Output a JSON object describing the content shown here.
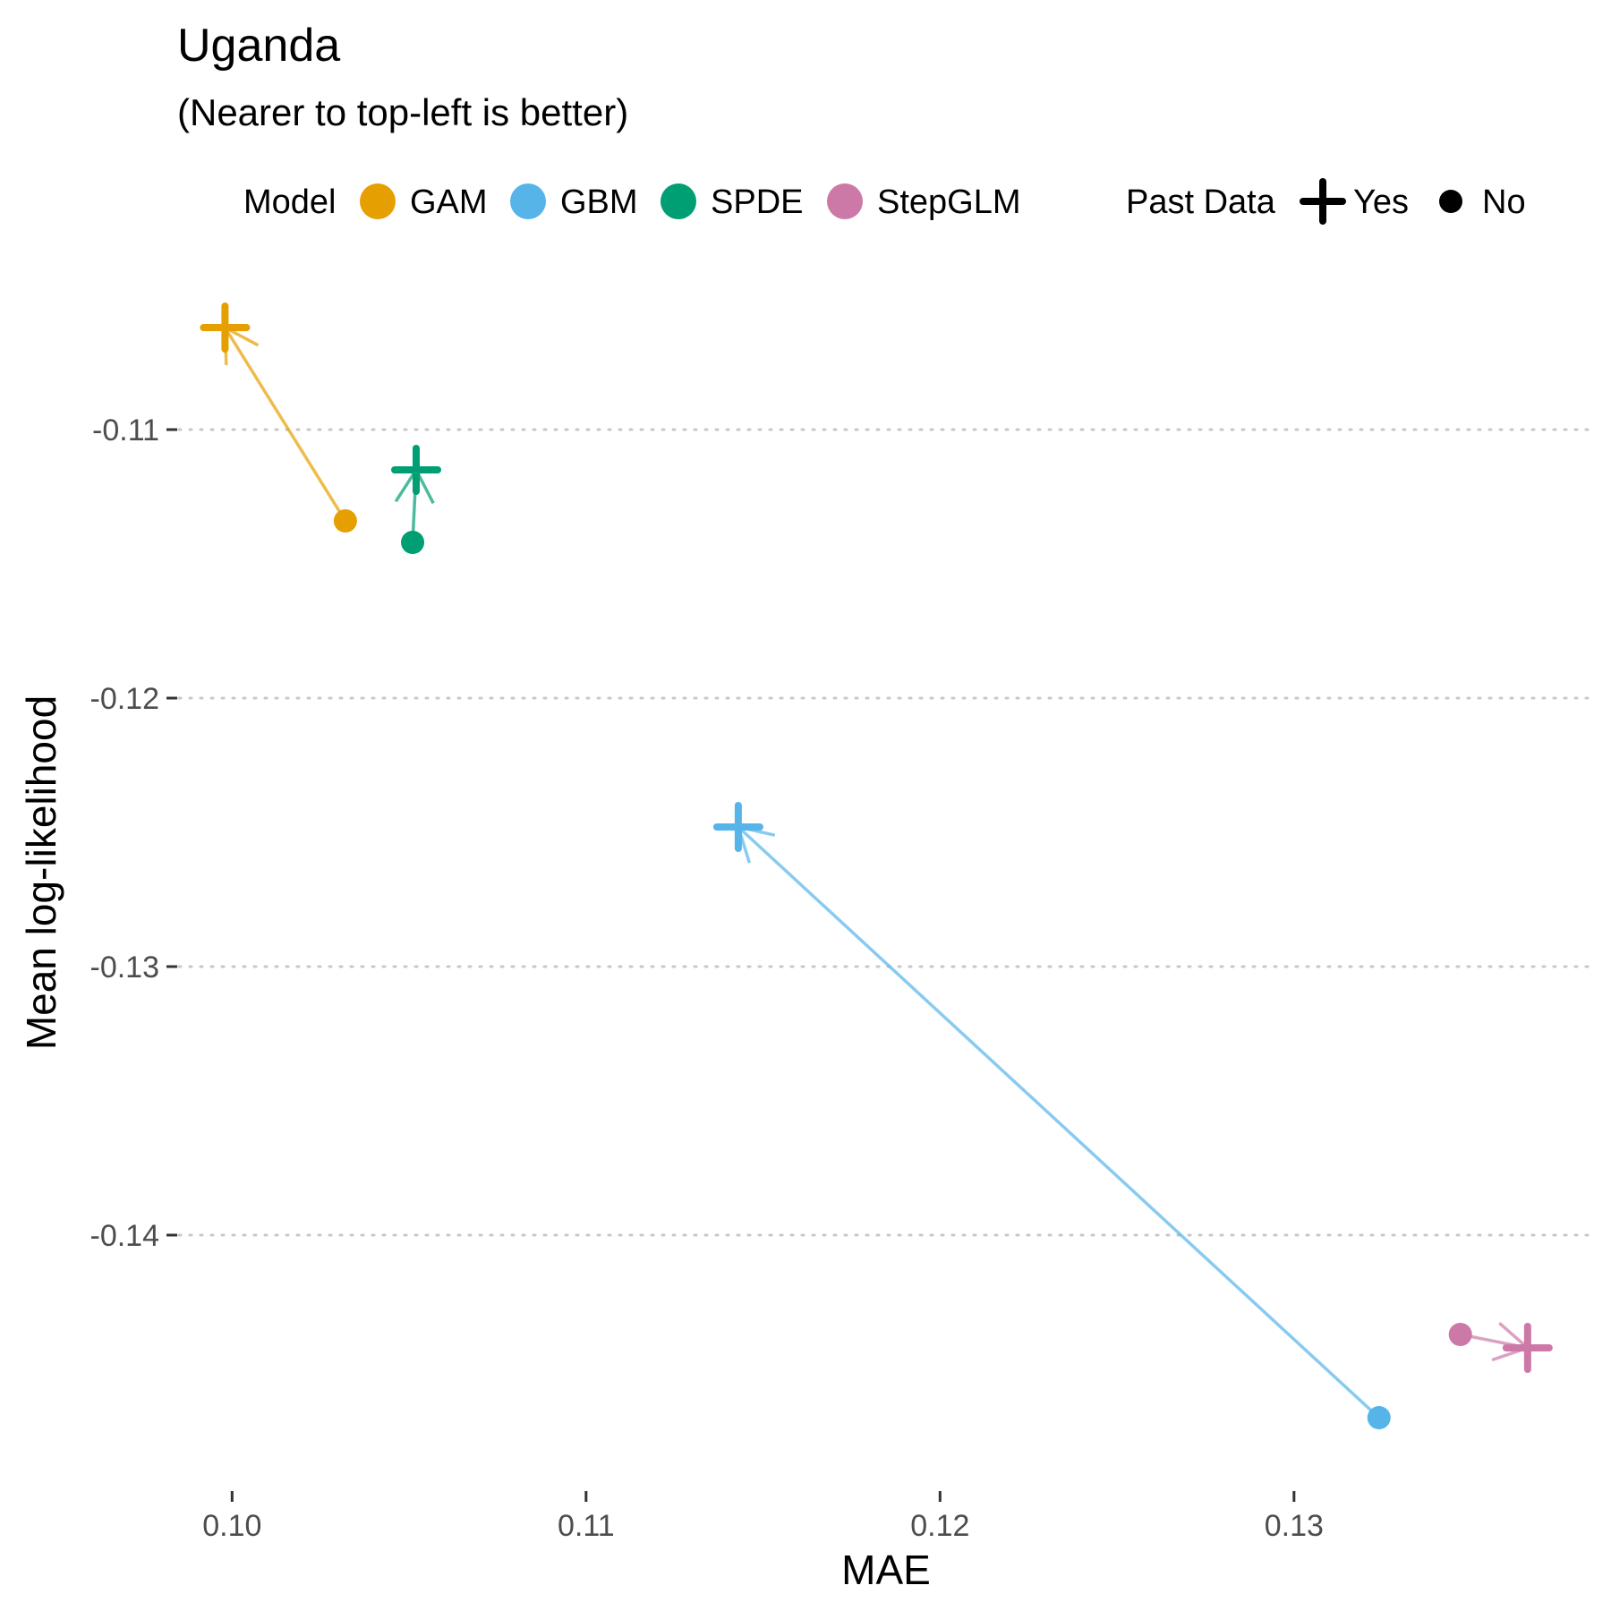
{
  "chart_data": {
    "type": "scatter",
    "title": "Uganda",
    "subtitle": "(Nearer to top-left is better)",
    "xlabel": "MAE",
    "ylabel": "Mean log-likelihood",
    "xlim": [
      0.0985,
      0.1385
    ],
    "ylim": [
      -0.1495,
      -0.1035
    ],
    "xticks": [
      0.1,
      0.11,
      0.12,
      0.13
    ],
    "xtick_labels": [
      "0.10",
      "0.11",
      "0.12",
      "0.13"
    ],
    "yticks": [
      -0.11,
      -0.12,
      -0.13,
      -0.14
    ],
    "ytick_labels": [
      "-0.11",
      "-0.12",
      "-0.13",
      "-0.14"
    ],
    "grid": "horizontal dotted",
    "legend": {
      "position": "top",
      "model_title": "Model",
      "past_data_title": "Past Data",
      "shape_labels": [
        "Yes",
        "No"
      ]
    },
    "series": [
      {
        "name": "GAM",
        "color": "#E69F00",
        "no": [
          0.1032,
          -0.1134
        ],
        "yes": [
          0.0998,
          -0.1062
        ]
      },
      {
        "name": "GBM",
        "color": "#56B4E9",
        "no": [
          0.1324,
          -0.1468
        ],
        "yes": [
          0.1143,
          -0.1248
        ]
      },
      {
        "name": "SPDE",
        "color": "#009E73",
        "no": [
          0.1051,
          -0.1142
        ],
        "yes": [
          0.1052,
          -0.1115
        ]
      },
      {
        "name": "StepGLM",
        "color": "#CC79A7",
        "no": [
          0.1347,
          -0.1437
        ],
        "yes": [
          0.1366,
          -0.1442
        ]
      }
    ]
  }
}
